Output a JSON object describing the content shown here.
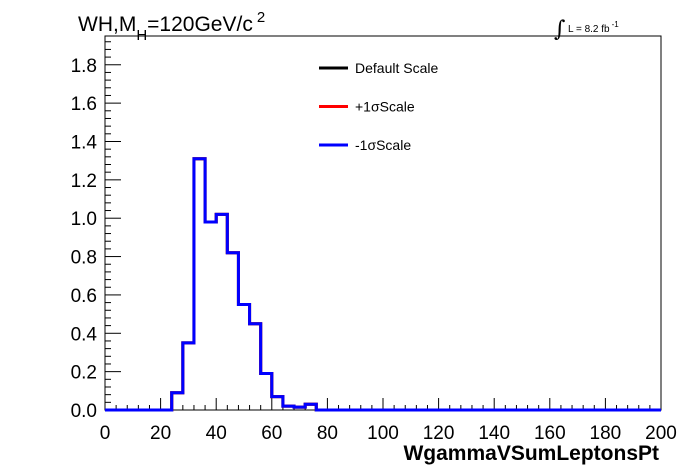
{
  "chart_data": {
    "type": "step-histogram",
    "title": "WH,M",
    "title_sub": "H",
    "title_rest": "=120GeV/c",
    "title_sup": "2",
    "lumi_symbol": "∫",
    "lumi_text": "L = 8.2 fb",
    "lumi_sup": "-1",
    "xlabel": "WgammaVSumLeptonsPt",
    "xlim": [
      0,
      200
    ],
    "ylim": [
      0,
      1.95
    ],
    "x_ticks": [
      0,
      20,
      40,
      60,
      80,
      100,
      120,
      140,
      160,
      180,
      200
    ],
    "y_ticks": [
      "0.0",
      "0.2",
      "0.4",
      "0.6",
      "0.8",
      "1.0",
      "1.2",
      "1.4",
      "1.6",
      "1.8"
    ],
    "bin_edges": [
      0,
      4,
      8,
      12,
      16,
      20,
      24,
      28,
      32,
      36,
      40,
      44,
      48,
      52,
      56,
      60,
      64,
      68,
      72,
      76,
      80,
      84,
      88,
      92,
      96,
      100,
      104,
      108,
      112,
      116,
      120,
      124,
      128,
      132,
      136,
      140,
      144,
      148,
      152,
      156,
      160,
      164,
      168,
      172,
      176,
      180,
      184,
      188,
      192,
      196,
      200
    ],
    "series": [
      {
        "name": "Default Scale",
        "color": "#000000",
        "values": [
          0,
          0,
          0,
          0,
          0,
          0,
          0.09,
          0.35,
          1.31,
          0.98,
          1.02,
          0.82,
          0.55,
          0.45,
          0.19,
          0.07,
          0.02,
          0.015,
          0.03,
          0,
          0,
          0,
          0,
          0,
          0,
          0,
          0,
          0,
          0,
          0,
          0,
          0,
          0,
          0,
          0,
          0,
          0,
          0,
          0,
          0,
          0,
          0,
          0,
          0,
          0,
          0,
          0,
          0,
          0,
          0
        ]
      },
      {
        "name": "+1σScale",
        "color": "#ff0000",
        "values": [
          0,
          0,
          0,
          0,
          0,
          0,
          0.09,
          0.35,
          1.31,
          0.98,
          1.02,
          0.82,
          0.55,
          0.45,
          0.19,
          0.07,
          0.02,
          0.015,
          0.03,
          0,
          0,
          0,
          0,
          0,
          0,
          0,
          0,
          0,
          0,
          0,
          0,
          0,
          0,
          0,
          0,
          0,
          0,
          0,
          0,
          0,
          0,
          0,
          0,
          0,
          0,
          0,
          0,
          0,
          0,
          0
        ]
      },
      {
        "name": "-1σScale",
        "color": "#0000ff",
        "values": [
          0,
          0,
          0,
          0,
          0,
          0,
          0.09,
          0.35,
          1.31,
          0.98,
          1.02,
          0.82,
          0.55,
          0.45,
          0.19,
          0.07,
          0.02,
          0.015,
          0.03,
          0,
          0,
          0,
          0,
          0,
          0,
          0,
          0,
          0,
          0,
          0,
          0,
          0,
          0,
          0,
          0,
          0,
          0,
          0,
          0,
          0,
          0,
          0,
          0,
          0,
          0,
          0,
          0,
          0,
          0,
          0
        ]
      }
    ],
    "legend_position": "top-center",
    "grid": false
  }
}
